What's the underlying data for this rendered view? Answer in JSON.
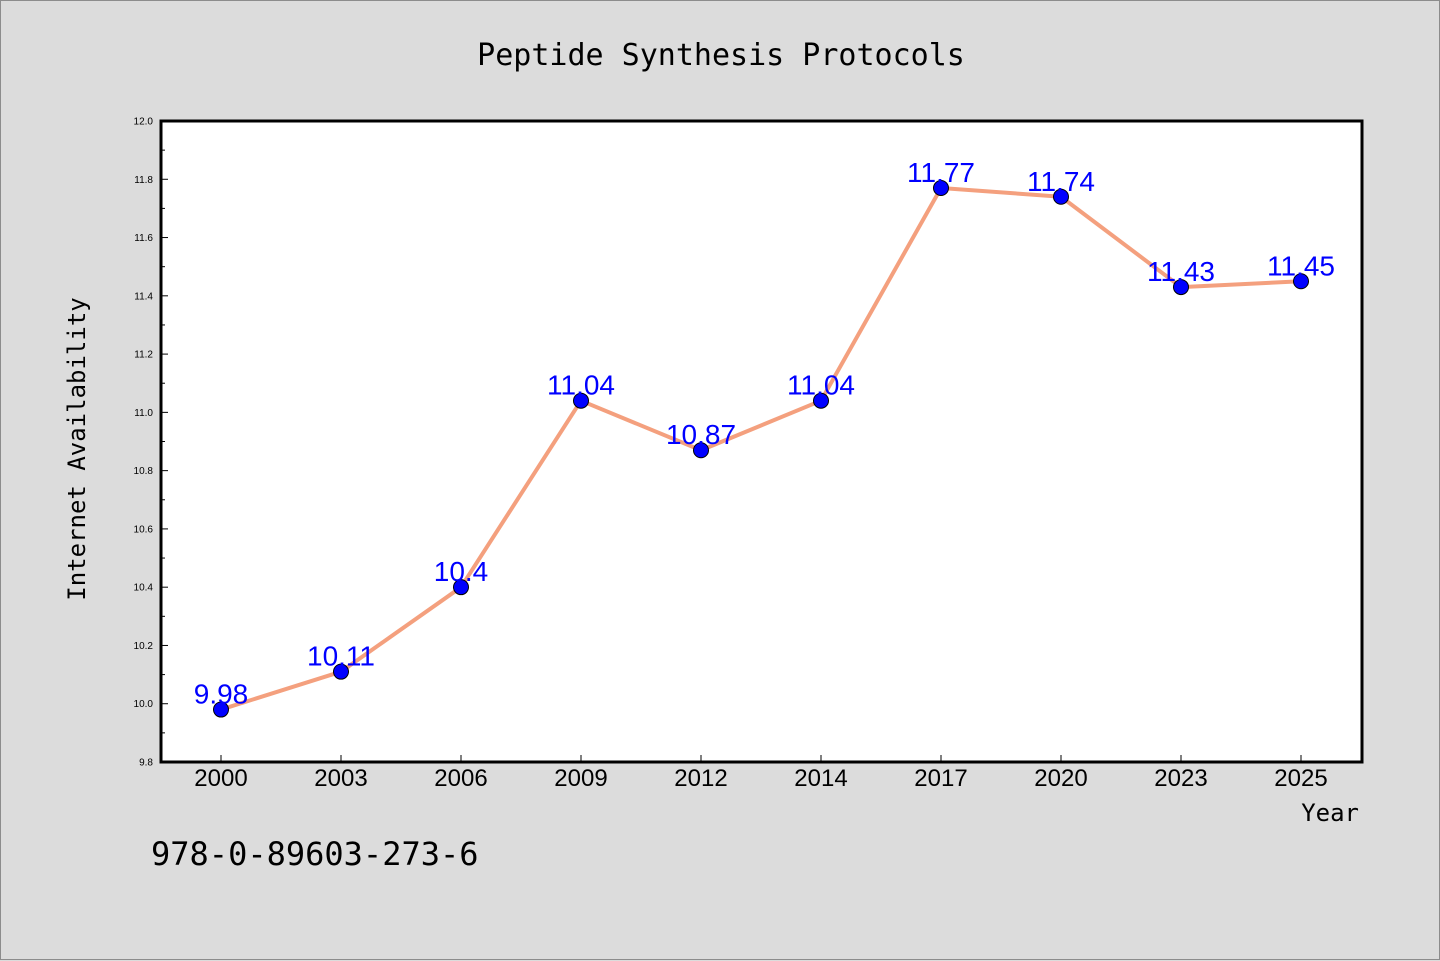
{
  "chart_data": {
    "type": "line",
    "title": "Peptide Synthesis Protocols",
    "xlabel": "Year",
    "ylabel": "Internet Availability",
    "categories": [
      "2000",
      "2003",
      "2006",
      "2009",
      "2012",
      "2014",
      "2017",
      "2020",
      "2023",
      "2025"
    ],
    "series": [
      {
        "values": [
          9.98,
          10.11,
          10.4,
          11.04,
          10.87,
          11.04,
          11.77,
          11.74,
          11.43,
          11.45
        ],
        "data_labels": [
          "9.98",
          "10.11",
          "10.4",
          "11.04",
          "10.87",
          "11.04",
          "11.77",
          "11.74",
          "11.43",
          "11.45"
        ],
        "line_color": "#f4a07e",
        "marker_color": "#0000ff"
      }
    ],
    "ylim": [
      9.8,
      12.0
    ],
    "yticks": [
      "9.8",
      "10.0",
      "10.2",
      "10.4",
      "10.6",
      "10.8",
      "11.0",
      "11.2",
      "11.4",
      "11.6",
      "11.8",
      "12.0"
    ],
    "grid": false,
    "legend": "none",
    "data_label_color": "#0000ff"
  },
  "footer": {
    "isbn": "978-0-89603-273-6"
  },
  "colors": {
    "background": "#dcdcdc",
    "plot_background": "#ffffff",
    "axis": "#000000"
  }
}
